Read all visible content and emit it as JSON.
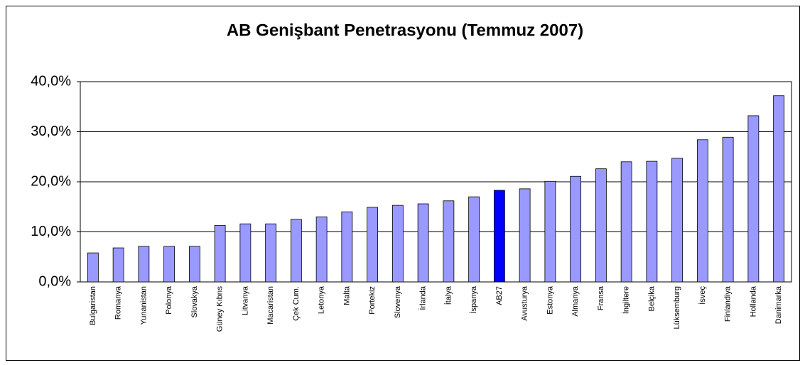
{
  "chart_data": {
    "type": "bar",
    "title": "AB Genişbant Penetrasyonu (Temmuz 2007)",
    "categories": [
      "Bulgaristan",
      "Romanya",
      "Yunanistan",
      "Polonya",
      "Slovakya",
      "Güney Kıbrıs",
      "Litvanya",
      "Macaristan",
      "Çek Cum.",
      "Letonya",
      "Malta",
      "Portekiz",
      "Slovenya",
      "İrlanda",
      "İtalya",
      "İspanya",
      "AB27",
      "Avusturya",
      "Estonya",
      "Almanya",
      "Fransa",
      "İngiltere",
      "Belçika",
      "Lüksemburg",
      "İsveç",
      "Finlandiya",
      "Hollanda",
      "Danimarka"
    ],
    "values": [
      5.8,
      6.8,
      7.1,
      7.1,
      7.1,
      11.3,
      11.6,
      11.6,
      12.5,
      13.0,
      14.0,
      14.9,
      15.3,
      15.6,
      16.2,
      17.0,
      18.3,
      18.6,
      20.1,
      21.1,
      22.6,
      24.0,
      24.1,
      24.7,
      28.4,
      28.9,
      33.2,
      37.2
    ],
    "color": "#9999ff",
    "highlight": {
      "category": "AB27",
      "color": "#0000ff"
    },
    "ylim": [
      0,
      40
    ],
    "yticks": [
      {
        "value": 0,
        "label": "0,0%"
      },
      {
        "value": 10,
        "label": "10,0%"
      },
      {
        "value": 20,
        "label": "20,0%"
      },
      {
        "value": 30,
        "label": "30,0%"
      },
      {
        "value": 40,
        "label": "40,0%"
      }
    ],
    "grid": true
  }
}
